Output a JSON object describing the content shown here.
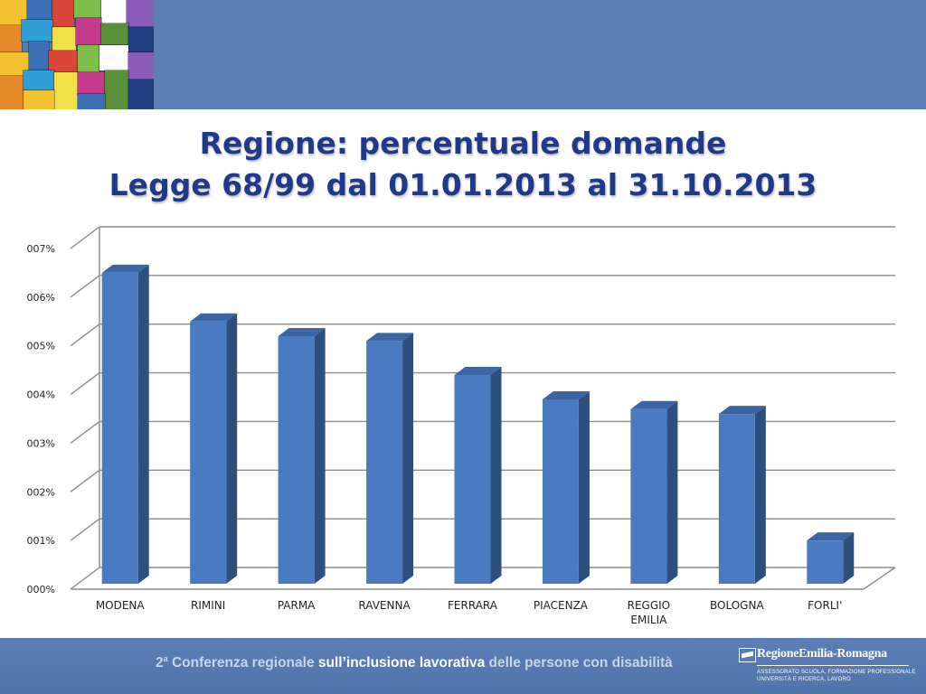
{
  "title": {
    "line1": "Regione: percentuale domande",
    "line2": "Legge 68/99 dal 01.01.2013 al 31.10.2013"
  },
  "chart_data": {
    "type": "bar",
    "categories": [
      "MODENA",
      "RIMINI",
      "PARMA",
      "RAVENNA",
      "FERRARA",
      "PIACENZA",
      "REGGIO EMILIA",
      "BOLOGNA",
      "FORLI'"
    ],
    "category_lines": [
      [
        "MODENA"
      ],
      [
        "RIMINI"
      ],
      [
        "PARMA"
      ],
      [
        "RAVENNA"
      ],
      [
        "FERRARA"
      ],
      [
        "PIACENZA"
      ],
      [
        "REGGIO",
        "EMILIA"
      ],
      [
        "BOLOGNA"
      ],
      [
        "FORLI'"
      ]
    ],
    "values": [
      6.5,
      5.5,
      5.2,
      5.1,
      4.4,
      3.9,
      3.7,
      3.6,
      1.0
    ],
    "ylim": [
      0,
      7
    ],
    "yticks": [
      "000%",
      "001%",
      "002%",
      "003%",
      "004%",
      "005%",
      "006%",
      "007%"
    ],
    "grid": true,
    "three_d": true,
    "colors": {
      "bar_front": "#4a7bc1",
      "bar_side": "#2d4f7e",
      "bar_top": "#3c66a3",
      "grid": "#8c8c8c"
    }
  },
  "footer": {
    "text_a": "2",
    "text_a_sup": "a",
    "text_b": " Conferenza regionale ",
    "text_c": "sull’inclusione lavorativa",
    "text_d": " delle persone con disabilità"
  },
  "logo": {
    "name": "RegioneEmilia-Romagna",
    "sub1": "ASSESSORATO SCUOLA, FORMAZIONE PROFESSIONALE",
    "sub2": "UNIVERSITÀ E RICERCA, LAVORO"
  },
  "colors": {
    "band": "#5b7fb5",
    "title": "#1f3a8a"
  }
}
